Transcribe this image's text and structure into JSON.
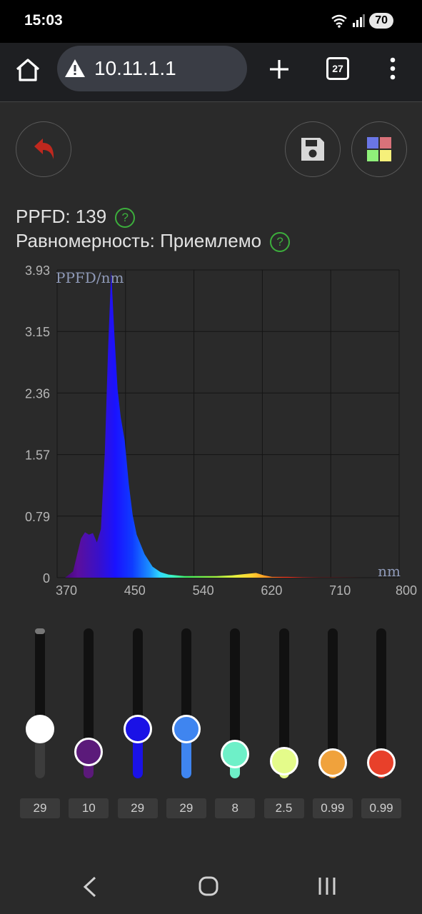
{
  "status": {
    "time": "15:03",
    "battery": "70"
  },
  "browser": {
    "url": "10.11.1.1",
    "tab_count": "27"
  },
  "info": {
    "ppfd_label": "PPFD: 139",
    "uniformity_label": "Равномерность: Приемлемо"
  },
  "chart_data": {
    "type": "area",
    "ylabel": "PPFD/nm",
    "xlabel": "nm",
    "xlim": [
      370,
      800
    ],
    "ylim": [
      0,
      3.93
    ],
    "x_ticks": [
      "370",
      "450",
      "540",
      "620",
      "710",
      "800"
    ],
    "y_ticks": [
      "3.93",
      "3.15",
      "2.36",
      "1.57",
      "0.79",
      "0"
    ],
    "grid": true,
    "fill": "spectral gradient",
    "x": [
      380,
      390,
      400,
      405,
      410,
      415,
      420,
      425,
      430,
      434,
      438,
      442,
      446,
      450,
      455,
      460,
      465,
      470,
      480,
      490,
      500,
      510,
      520,
      530,
      550,
      570,
      590,
      600,
      610,
      620,
      630,
      640,
      660,
      680,
      700,
      720,
      740,
      760,
      800
    ],
    "y": [
      0.0,
      0.08,
      0.5,
      0.58,
      0.55,
      0.57,
      0.45,
      0.62,
      1.6,
      2.9,
      3.93,
      3.1,
      2.4,
      2.05,
      1.75,
      1.2,
      0.8,
      0.55,
      0.3,
      0.14,
      0.07,
      0.04,
      0.03,
      0.02,
      0.02,
      0.02,
      0.03,
      0.04,
      0.05,
      0.06,
      0.03,
      0.01,
      0.01,
      0.005,
      0.003,
      0.002,
      0.001,
      0.0,
      0.0
    ]
  },
  "sliders": [
    {
      "value": "29",
      "level": 0.29,
      "color": "#ffffff"
    },
    {
      "value": "10",
      "level": 0.1,
      "color": "#5b1a7a"
    },
    {
      "value": "29",
      "level": 0.29,
      "color": "#1a12e6"
    },
    {
      "value": "29",
      "level": 0.29,
      "color": "#3f85f0"
    },
    {
      "value": "8",
      "level": 0.08,
      "color": "#6ef0c8"
    },
    {
      "value": "2.5",
      "level": 0.025,
      "color": "#e4fb8a"
    },
    {
      "value": "0.99",
      "level": 0.0099,
      "color": "#f0a23c"
    },
    {
      "value": "0.99",
      "level": 0.0099,
      "color": "#e8402a"
    }
  ]
}
